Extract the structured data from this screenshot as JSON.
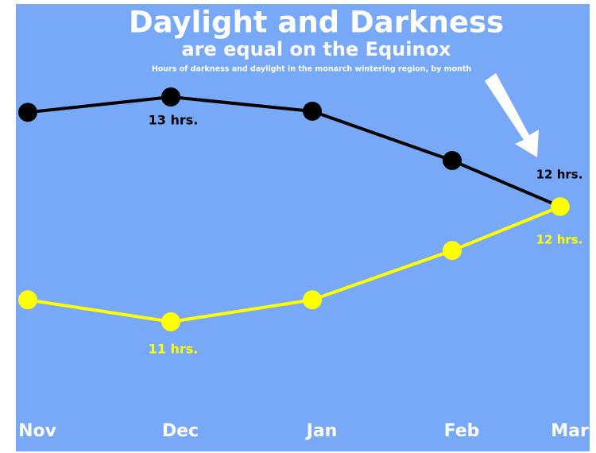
{
  "chart_data": {
    "type": "line",
    "title": "Daylight and Darkness",
    "subtitle": "are equal on the Equinox",
    "note": "Hours of darkness and daylight in the monarch wintering region, by month",
    "categories": [
      "Nov",
      "Dec",
      "Jan",
      "Feb",
      "Mar"
    ],
    "series": [
      {
        "name": "Darkness",
        "color": "#000000",
        "values": [
          12.86,
          13.0,
          12.87,
          12.42,
          12.0
        ]
      },
      {
        "name": "Daylight",
        "color": "#ffff00",
        "values": [
          11.15,
          10.95,
          11.15,
          11.6,
          12.0
        ]
      }
    ],
    "ylim": [
      10.2,
      13.7
    ],
    "annotations": [
      "13 hrs.",
      "11 hrs.",
      "12 hrs.",
      "12 hrs."
    ]
  }
}
